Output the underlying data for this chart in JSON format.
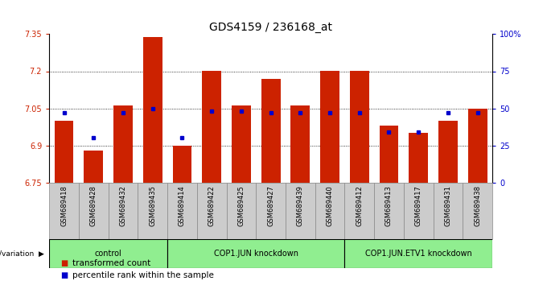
{
  "title": "GDS4159 / 236168_at",
  "samples": [
    "GSM689418",
    "GSM689428",
    "GSM689432",
    "GSM689435",
    "GSM689414",
    "GSM689422",
    "GSM689425",
    "GSM689427",
    "GSM689439",
    "GSM689440",
    "GSM689412",
    "GSM689413",
    "GSM689417",
    "GSM689431",
    "GSM689438"
  ],
  "bar_values": [
    7.0,
    6.88,
    7.06,
    7.34,
    6.9,
    7.2,
    7.06,
    7.17,
    7.06,
    7.2,
    7.2,
    6.98,
    6.95,
    7.0,
    7.05
  ],
  "percentile_pct": [
    47,
    30,
    47,
    50,
    30,
    48,
    48,
    47,
    47,
    47,
    47,
    34,
    34,
    47,
    47
  ],
  "groups": [
    "control",
    "control",
    "control",
    "control",
    "COP1.JUN knockdown",
    "COP1.JUN knockdown",
    "COP1.JUN knockdown",
    "COP1.JUN knockdown",
    "COP1.JUN knockdown",
    "COP1.JUN knockdown",
    "COP1.JUN.ETV1 knockdown",
    "COP1.JUN.ETV1 knockdown",
    "COP1.JUN.ETV1 knockdown",
    "COP1.JUN.ETV1 knockdown",
    "COP1.JUN.ETV1 knockdown"
  ],
  "group_info": [
    {
      "label": "control",
      "start": 0,
      "end": 3
    },
    {
      "label": "COP1.JUN knockdown",
      "start": 4,
      "end": 9
    },
    {
      "label": "COP1.JUN.ETV1 knockdown",
      "start": 10,
      "end": 14
    }
  ],
  "bar_color": "#cc2200",
  "percentile_color": "#0000cc",
  "ymin": 6.75,
  "ymax": 7.35,
  "yticks": [
    6.75,
    6.9,
    7.05,
    7.2,
    7.35
  ],
  "ytick_labels": [
    "6.75",
    "6.9",
    "7.05",
    "7.2",
    "7.35"
  ],
  "right_yticks": [
    0,
    25,
    50,
    75,
    100
  ],
  "right_ytick_labels": [
    "0",
    "25",
    "50",
    "75",
    "100%"
  ],
  "grid_lines": [
    6.9,
    7.05,
    7.2
  ],
  "light_green": "#90EE90",
  "sample_box_color": "#cccccc",
  "sample_box_edge": "#888888",
  "background_color": "#ffffff",
  "title_fontsize": 10,
  "tick_fontsize": 7,
  "sample_fontsize": 6,
  "group_fontsize": 7,
  "legend_fontsize": 7.5
}
